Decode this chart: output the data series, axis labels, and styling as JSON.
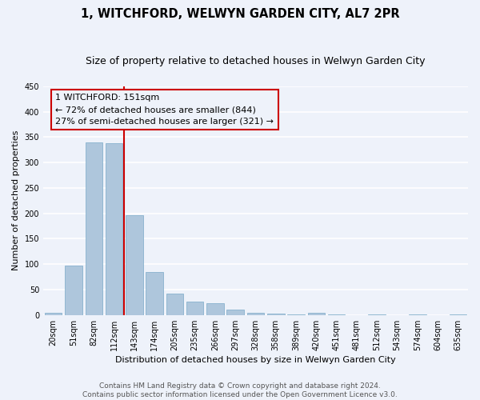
{
  "title": "1, WITCHFORD, WELWYN GARDEN CITY, AL7 2PR",
  "subtitle": "Size of property relative to detached houses in Welwyn Garden City",
  "xlabel": "Distribution of detached houses by size in Welwyn Garden City",
  "ylabel": "Number of detached properties",
  "footer_line1": "Contains HM Land Registry data © Crown copyright and database right 2024.",
  "footer_line2": "Contains public sector information licensed under the Open Government Licence v3.0.",
  "bar_color": "#aec6dc",
  "bar_edge_color": "#7aaac8",
  "background_color": "#eef2fa",
  "grid_color": "#ffffff",
  "categories": [
    "20sqm",
    "51sqm",
    "82sqm",
    "112sqm",
    "143sqm",
    "174sqm",
    "205sqm",
    "235sqm",
    "266sqm",
    "297sqm",
    "328sqm",
    "358sqm",
    "389sqm",
    "420sqm",
    "451sqm",
    "481sqm",
    "512sqm",
    "543sqm",
    "574sqm",
    "604sqm",
    "635sqm"
  ],
  "values": [
    5,
    98,
    340,
    338,
    196,
    85,
    42,
    27,
    23,
    10,
    5,
    3,
    1,
    4,
    1,
    0,
    2,
    0,
    1,
    0,
    2
  ],
  "ylim": [
    0,
    450
  ],
  "yticks": [
    0,
    50,
    100,
    150,
    200,
    250,
    300,
    350,
    400,
    450
  ],
  "property_label": "1 WITCHFORD: 151sqm",
  "annotation_line1": "← 72% of detached houses are smaller (844)",
  "annotation_line2": "27% of semi-detached houses are larger (321) →",
  "box_color": "#cc0000",
  "title_fontsize": 10.5,
  "subtitle_fontsize": 9,
  "axis_label_fontsize": 8,
  "tick_fontsize": 7,
  "annotation_fontsize": 8,
  "footer_fontsize": 6.5
}
